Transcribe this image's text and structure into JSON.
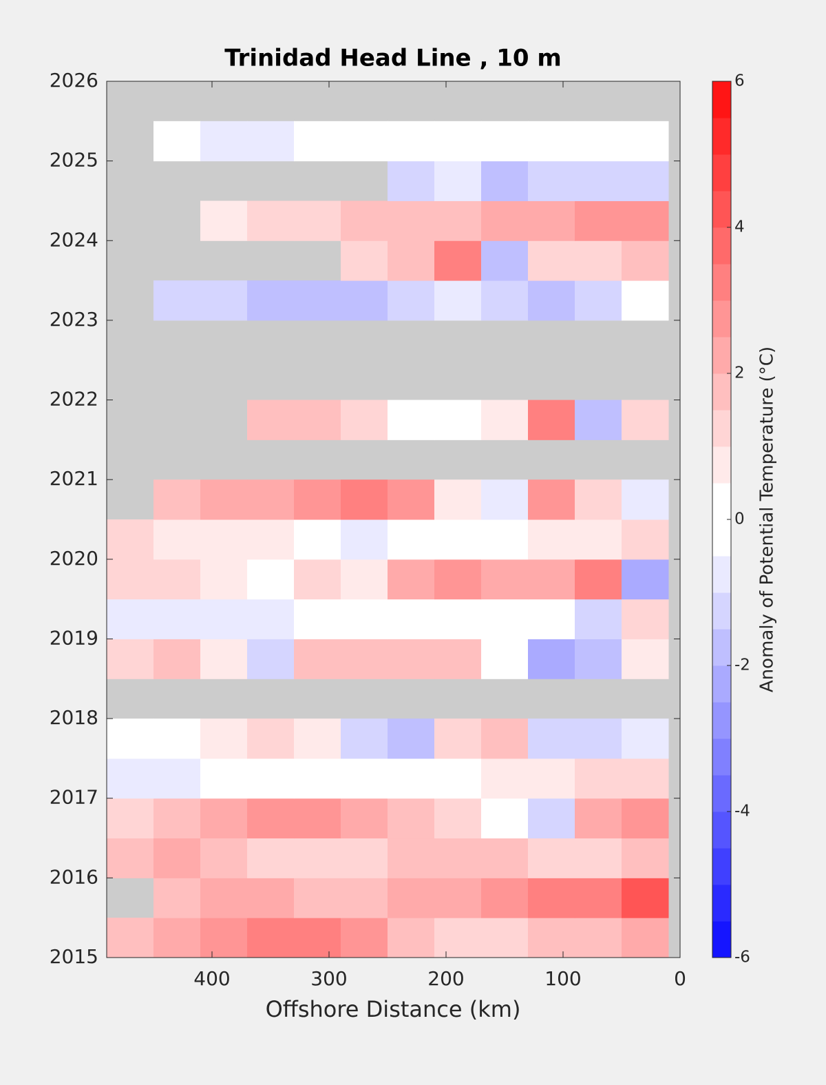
{
  "chart_data": {
    "type": "heatmap",
    "title": "Trinidad Head Line , 10 m",
    "xlabel": "Offshore Distance (km)",
    "colorbar_label": "Anomaly of Potential Temperature (°C)",
    "xlim": [
      490,
      0
    ],
    "xticks": [
      400,
      300,
      200,
      100,
      0
    ],
    "ylim": [
      2015,
      2026
    ],
    "yticks": [
      2015,
      2016,
      2017,
      2018,
      2019,
      2020,
      2021,
      2022,
      2023,
      2024,
      2025,
      2026
    ],
    "clim": [
      -6,
      6
    ],
    "cticks": [
      -6,
      -4,
      -2,
      0,
      2,
      4,
      6
    ],
    "clevel_step": 0.5,
    "missing_color": "#cccccc",
    "x": [
      470,
      430,
      390,
      350,
      310,
      270,
      230,
      190,
      150,
      110,
      70,
      30
    ],
    "y": [
      2015.25,
      2015.75,
      2016.25,
      2016.75,
      2017.25,
      2017.75,
      2018.25,
      2018.75,
      2019.25,
      2019.75,
      2020.25,
      2020.75,
      2021.25,
      2021.75,
      2022.25,
      2022.75,
      2023.25,
      2023.75,
      2024.25,
      2024.75,
      2025.25,
      2025.75
    ],
    "z": [
      [
        1.5,
        2,
        2.5,
        3,
        3,
        2.5,
        1.5,
        1,
        1,
        1.5,
        1.5,
        2
      ],
      [
        null,
        1.5,
        2,
        2,
        1.5,
        1.5,
        2,
        2,
        2.5,
        3,
        3,
        4
      ],
      [
        1.5,
        2,
        1.5,
        1,
        1,
        1,
        1.5,
        1.5,
        1.5,
        1,
        1,
        1.5
      ],
      [
        1,
        1.5,
        2,
        2.5,
        2.5,
        2,
        1.5,
        1,
        0,
        -1,
        2,
        2.5
      ],
      [
        -0.5,
        -0.5,
        0,
        0,
        0,
        0,
        0,
        0,
        0.5,
        0.5,
        1,
        1
      ],
      [
        0,
        0,
        0.5,
        1,
        0.5,
        -1,
        -1.5,
        1,
        1.5,
        -1,
        -1,
        -0.5
      ],
      [
        null,
        null,
        null,
        null,
        null,
        null,
        null,
        null,
        null,
        null,
        null,
        null
      ],
      [
        1,
        1.5,
        0.5,
        -1,
        1.5,
        1.5,
        1.5,
        1.5,
        0,
        -2,
        -1.5,
        0.5
      ],
      [
        -0.5,
        -0.5,
        -0.5,
        -0.5,
        0,
        0,
        0,
        0,
        0,
        0,
        -1,
        1
      ],
      [
        1,
        1,
        0.5,
        0,
        1,
        0.5,
        2,
        2.5,
        2,
        2,
        3,
        -2
      ],
      [
        1,
        0.5,
        0.5,
        0.5,
        0,
        -0.5,
        0,
        0,
        0,
        0.5,
        0.5,
        1
      ],
      [
        null,
        1.5,
        2,
        2,
        2.5,
        3,
        2.5,
        0.5,
        -0.5,
        2.5,
        1,
        -0.5
      ],
      [
        null,
        null,
        null,
        null,
        null,
        null,
        null,
        null,
        null,
        null,
        null,
        null
      ],
      [
        null,
        null,
        null,
        1.5,
        1.5,
        1,
        0,
        0,
        0.5,
        3,
        -1.5,
        1
      ],
      [
        null,
        null,
        null,
        null,
        null,
        null,
        null,
        null,
        null,
        null,
        null,
        null
      ],
      [
        null,
        null,
        null,
        null,
        null,
        null,
        null,
        null,
        null,
        null,
        null,
        null
      ],
      [
        null,
        -1,
        -1,
        -1.5,
        -1.5,
        -1.5,
        -1,
        -0.5,
        -1,
        -1.5,
        -1,
        0
      ],
      [
        null,
        null,
        null,
        null,
        null,
        1,
        1.5,
        3,
        -1.5,
        1,
        1,
        1.5
      ],
      [
        null,
        null,
        0.5,
        1,
        1,
        1.5,
        1.5,
        1.5,
        2,
        2,
        2.5,
        2.5
      ],
      [
        null,
        null,
        null,
        null,
        null,
        null,
        -1,
        -0.5,
        -1.5,
        -1,
        -1,
        -1
      ],
      [
        null,
        0,
        -0.5,
        -0.5,
        0,
        0,
        0,
        0,
        0,
        0,
        0,
        0
      ],
      [
        null,
        null,
        null,
        null,
        null,
        null,
        null,
        null,
        null,
        null,
        null,
        null
      ]
    ]
  }
}
